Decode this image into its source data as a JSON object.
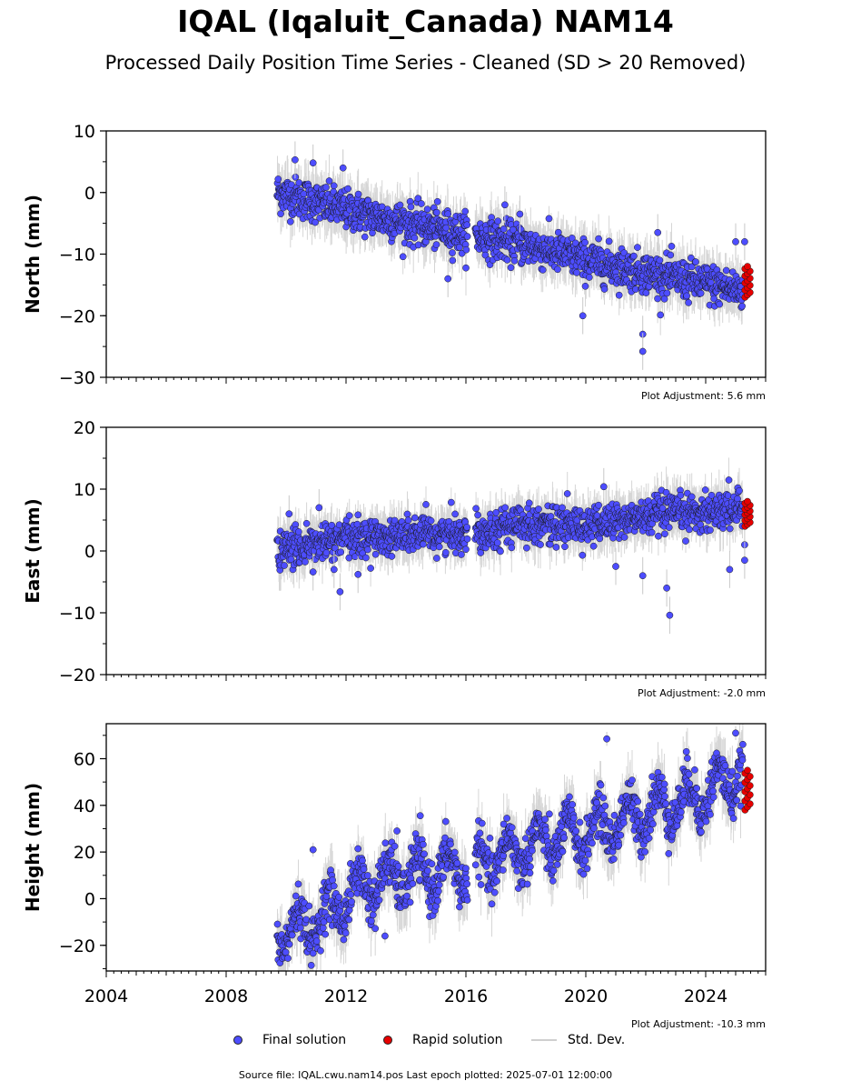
{
  "header": {
    "title": "IQAL (Iqaluit_Canada) NAM14",
    "subtitle": "Processed Daily Position Time Series - Cleaned (SD > 20 Removed)"
  },
  "legend": {
    "final_label": "Final solution",
    "rapid_label": "Rapid solution",
    "std_label": "Std. Dev."
  },
  "footer": {
    "source_text": "Source file: IQAL.cwu.nam14.pos  Last epoch plotted: 2025-07-01 12:00:00"
  },
  "colors": {
    "final": "#4d4dff",
    "rapid": "#e60000",
    "std": "#c8c8c8"
  },
  "chart_data": [
    {
      "type": "scatter",
      "ylabel": "North (mm)",
      "ylim": [
        -30,
        10
      ],
      "yticks": [
        10,
        0,
        -10,
        -20,
        -30
      ],
      "xlim": [
        2004,
        2026
      ],
      "adjustment": "Plot Adjustment: 5.6 mm",
      "trend": [
        [
          2009.7,
          0
        ],
        [
          2013,
          -4
        ],
        [
          2016.2,
          -7
        ],
        [
          2018,
          -8.5
        ],
        [
          2020,
          -11
        ],
        [
          2022,
          -13
        ],
        [
          2025.3,
          -16
        ]
      ],
      "scatter_sd": 1.6,
      "outliers": [
        [
          2010.3,
          5.3
        ],
        [
          2010.9,
          4.8
        ],
        [
          2011.9,
          4
        ],
        [
          2015.4,
          -14
        ],
        [
          2017.3,
          -2
        ],
        [
          2017.8,
          -3.5
        ],
        [
          2019.9,
          -20
        ],
        [
          2021.9,
          -23
        ],
        [
          2021.9,
          -25.8
        ],
        [
          2022.4,
          -6.5
        ],
        [
          2025.0,
          -8
        ],
        [
          2025.3,
          -8
        ]
      ],
      "rapid": {
        "x_range": [
          2025.25,
          2025.5
        ],
        "y_range": [
          -17,
          -12
        ]
      },
      "series": [
        {
          "name": "Final solution"
        },
        {
          "name": "Rapid solution"
        }
      ]
    },
    {
      "type": "scatter",
      "ylabel": "East (mm)",
      "ylim": [
        -20,
        20
      ],
      "yticks": [
        20,
        10,
        0,
        -10,
        -20
      ],
      "xlim": [
        2004,
        2026
      ],
      "adjustment": "Plot Adjustment: -2.0 mm",
      "trend": [
        [
          2009.7,
          0
        ],
        [
          2012,
          2
        ],
        [
          2016.2,
          3
        ],
        [
          2018,
          4.5
        ],
        [
          2020,
          4
        ],
        [
          2022,
          5.5
        ],
        [
          2025.3,
          7
        ]
      ],
      "scatter_sd": 1.5,
      "outliers": [
        [
          2010.1,
          6
        ],
        [
          2010.9,
          -3.4
        ],
        [
          2011.1,
          7
        ],
        [
          2011.6,
          -3
        ],
        [
          2011.8,
          -6.6
        ],
        [
          2012.4,
          -3.8
        ],
        [
          2020.6,
          10.4
        ],
        [
          2021.0,
          -2.5
        ],
        [
          2021.9,
          -4
        ],
        [
          2022.7,
          -6
        ],
        [
          2022.8,
          -10.4
        ],
        [
          2024.8,
          -3
        ],
        [
          2025.3,
          1
        ],
        [
          2025.3,
          -1.5
        ]
      ],
      "rapid": {
        "x_range": [
          2025.25,
          2025.5
        ],
        "y_range": [
          4,
          8
        ]
      },
      "series": [
        {
          "name": "Final solution"
        },
        {
          "name": "Rapid solution"
        }
      ]
    },
    {
      "type": "scatter",
      "ylabel": "Height (mm)",
      "ylim": [
        -31,
        75
      ],
      "yticks": [
        60,
        40,
        20,
        0,
        -20
      ],
      "xlim": [
        2004,
        2026
      ],
      "xticks": [
        2004,
        2008,
        2012,
        2016,
        2020,
        2024
      ],
      "adjustment": "Plot Adjustment: -10.3 mm",
      "trend": [
        [
          2009.7,
          -15
        ],
        [
          2011,
          -10
        ],
        [
          2012.5,
          5
        ],
        [
          2014,
          10
        ],
        [
          2016.2,
          13
        ],
        [
          2018,
          22
        ],
        [
          2020,
          28
        ],
        [
          2022,
          37
        ],
        [
          2024,
          45
        ],
        [
          2025.3,
          55
        ]
      ],
      "seasonal_amp": 8,
      "scatter_sd": 5,
      "outliers": [
        [
          2010.9,
          21
        ],
        [
          2013.7,
          29
        ],
        [
          2013.3,
          -16
        ],
        [
          2020.7,
          68.5
        ],
        [
          2025.0,
          71
        ]
      ],
      "rapid": {
        "x_range": [
          2025.25,
          2025.5
        ],
        "y_range": [
          38,
          55
        ]
      },
      "series": [
        {
          "name": "Final solution"
        },
        {
          "name": "Rapid solution"
        }
      ]
    }
  ]
}
